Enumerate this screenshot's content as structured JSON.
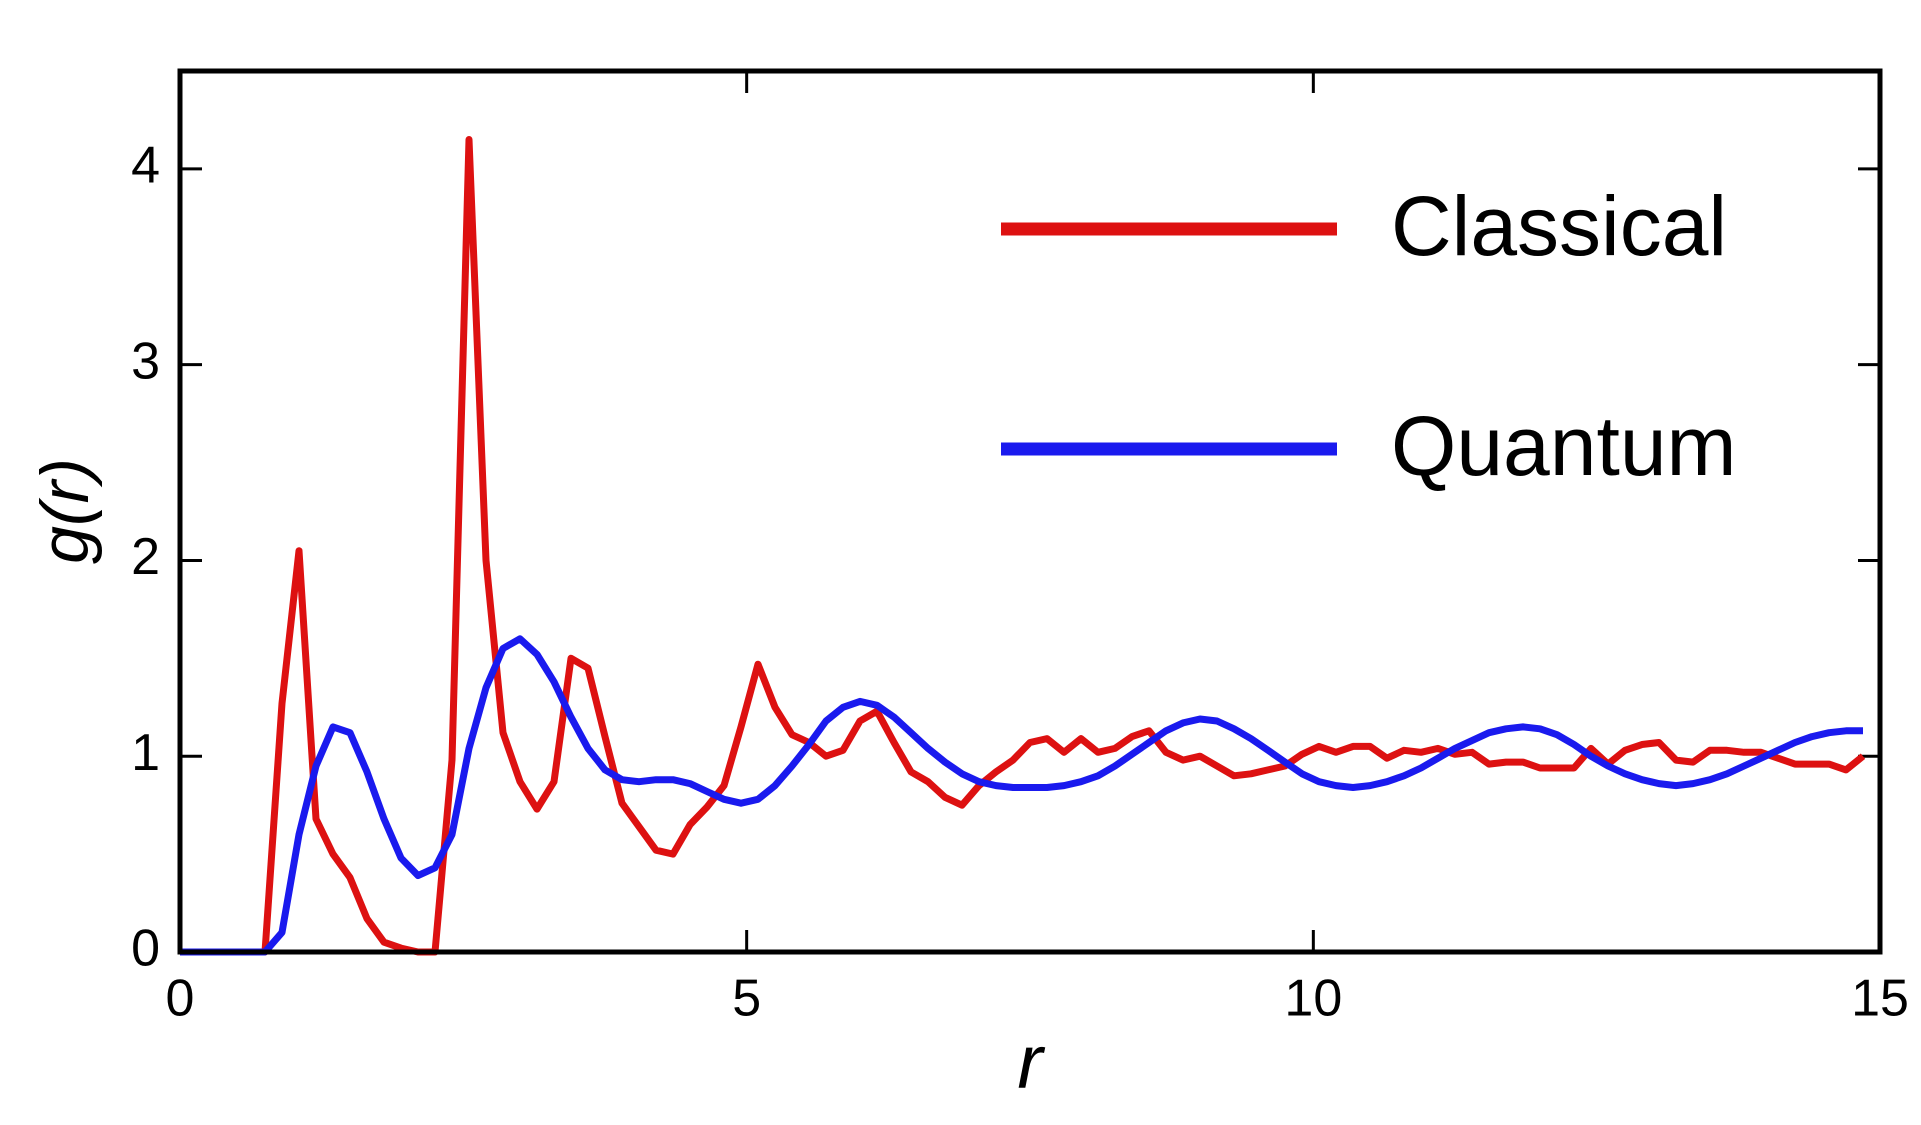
{
  "chart_data": {
    "type": "line",
    "xlabel": "r",
    "ylabel": "g(r)",
    "x": [
      0,
      0.15,
      0.3,
      0.45,
      0.6,
      0.75,
      0.9,
      1.05,
      1.2,
      1.35,
      1.5,
      1.65,
      1.8,
      1.95,
      2.1,
      2.25,
      2.4,
      2.55,
      2.7,
      2.85,
      3,
      3.15,
      3.3,
      3.45,
      3.6,
      3.75,
      3.9,
      4.05,
      4.2,
      4.35,
      4.5,
      4.65,
      4.8,
      4.95,
      5.1,
      5.25,
      5.4,
      5.55,
      5.7,
      5.85,
      6,
      6.15,
      6.3,
      6.45,
      6.6,
      6.75,
      6.9,
      7.05,
      7.2,
      7.35,
      7.5,
      7.65,
      7.8,
      7.95,
      8.1,
      8.25,
      8.4,
      8.55,
      8.7,
      8.85,
      9,
      9.15,
      9.3,
      9.45,
      9.6,
      9.75,
      9.9,
      10.05,
      10.2,
      10.35,
      10.5,
      10.65,
      10.8,
      10.95,
      11.1,
      11.25,
      11.4,
      11.55,
      11.7,
      11.85,
      12,
      12.15,
      12.3,
      12.45,
      12.6,
      12.75,
      12.9,
      13.05,
      13.2,
      13.35,
      13.5,
      13.65,
      13.8,
      13.95,
      14.1,
      14.25,
      14.4,
      14.55,
      14.7,
      14.85
    ],
    "series": [
      {
        "name": "Classical",
        "color": "#dd1111",
        "values": [
          0,
          0,
          0,
          0,
          0,
          0,
          1.27,
          2.05,
          0.68,
          0.5,
          0.38,
          0.17,
          0.05,
          0.02,
          0,
          0,
          0.98,
          4.15,
          2.0,
          1.12,
          0.87,
          0.73,
          0.87,
          1.5,
          1.45,
          1.1,
          0.76,
          0.64,
          0.52,
          0.5,
          0.65,
          0.74,
          0.85,
          1.15,
          1.47,
          1.25,
          1.11,
          1.07,
          1.0,
          1.03,
          1.18,
          1.23,
          1.07,
          0.92,
          0.87,
          0.79,
          0.75,
          0.85,
          0.92,
          0.98,
          1.07,
          1.09,
          1.02,
          1.09,
          1.02,
          1.04,
          1.1,
          1.13,
          1.02,
          0.98,
          1.0,
          0.95,
          0.9,
          0.91,
          0.93,
          0.95,
          1.01,
          1.05,
          1.02,
          1.05,
          1.05,
          0.99,
          1.03,
          1.02,
          1.04,
          1.01,
          1.02,
          0.96,
          0.97,
          0.97,
          0.94,
          0.94,
          0.94,
          1.04,
          0.96,
          1.03,
          1.06,
          1.07,
          0.98,
          0.97,
          1.03,
          1.03,
          1.02,
          1.02,
          0.99,
          0.96,
          0.96,
          0.96,
          0.93,
          1.0
        ]
      },
      {
        "name": "Quantum",
        "color": "#1a1aee",
        "values": [
          0,
          0,
          0,
          0,
          0,
          0,
          0.1,
          0.6,
          0.95,
          1.15,
          1.12,
          0.92,
          0.68,
          0.48,
          0.39,
          0.43,
          0.6,
          1.04,
          1.35,
          1.55,
          1.6,
          1.52,
          1.38,
          1.2,
          1.04,
          0.93,
          0.88,
          0.87,
          0.88,
          0.88,
          0.86,
          0.82,
          0.78,
          0.76,
          0.78,
          0.85,
          0.95,
          1.06,
          1.18,
          1.25,
          1.28,
          1.26,
          1.2,
          1.12,
          1.04,
          0.97,
          0.91,
          0.87,
          0.85,
          0.84,
          0.84,
          0.84,
          0.85,
          0.87,
          0.9,
          0.95,
          1.01,
          1.07,
          1.13,
          1.17,
          1.19,
          1.18,
          1.14,
          1.09,
          1.03,
          0.97,
          0.91,
          0.87,
          0.85,
          0.84,
          0.85,
          0.87,
          0.9,
          0.94,
          0.99,
          1.04,
          1.08,
          1.12,
          1.14,
          1.15,
          1.14,
          1.11,
          1.06,
          1.0,
          0.95,
          0.91,
          0.88,
          0.86,
          0.85,
          0.86,
          0.88,
          0.91,
          0.95,
          0.99,
          1.03,
          1.07,
          1.1,
          1.12,
          1.13,
          1.13
        ]
      }
    ],
    "xlim": [
      0,
      15
    ],
    "xticks": [
      0,
      5,
      10,
      15
    ],
    "ylim": [
      0,
      4.5
    ],
    "yticks": [
      0,
      1,
      2,
      3,
      4
    ],
    "legend": "upper right"
  }
}
